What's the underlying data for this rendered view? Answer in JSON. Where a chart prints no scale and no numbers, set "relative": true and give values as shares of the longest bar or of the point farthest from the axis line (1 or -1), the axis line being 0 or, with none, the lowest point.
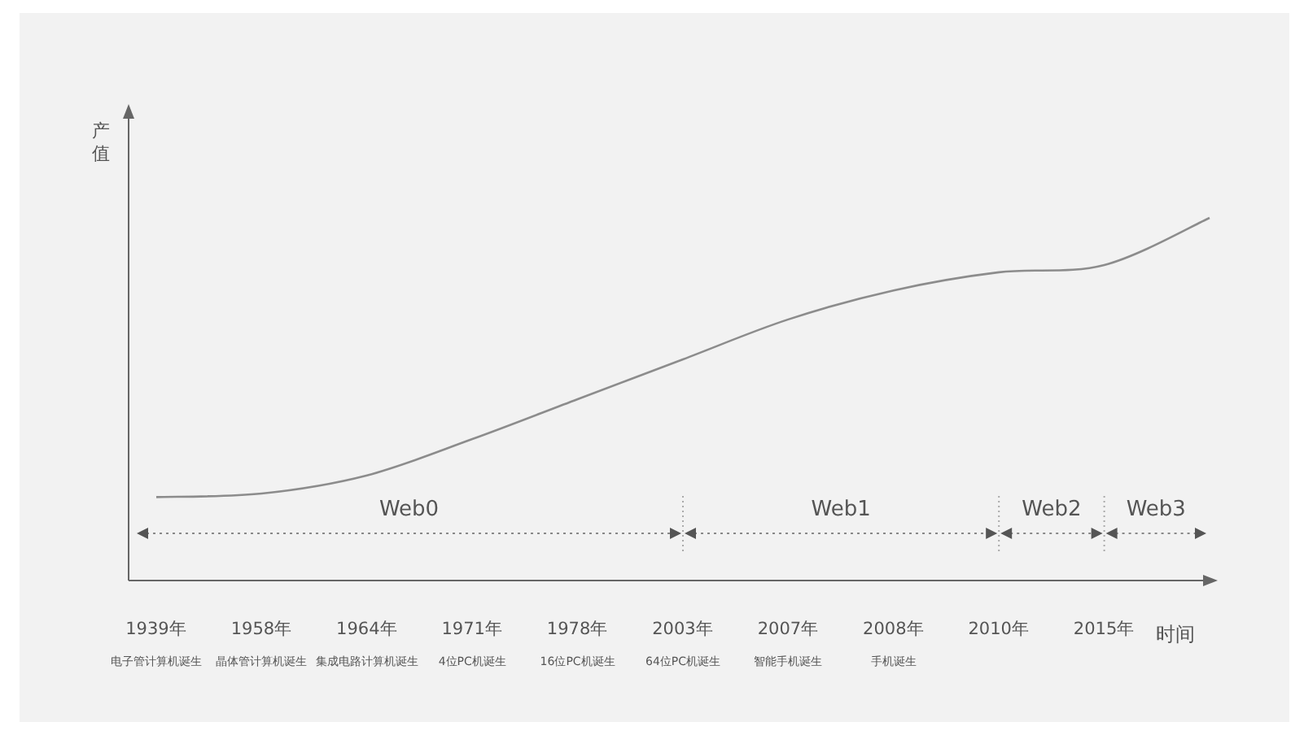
{
  "chart_data": {
    "type": "line",
    "relative": true,
    "xlabel": "时间",
    "ylabel": "产值",
    "color": "#8c8c8c",
    "categories": [
      "1939年",
      "1958年",
      "1964年",
      "1971年",
      "1978年",
      "2003年",
      "2007年",
      "2008年",
      "2010年",
      "2015年",
      null
    ],
    "values": [
      0.23,
      0.24,
      0.29,
      0.39,
      0.5,
      0.61,
      0.72,
      0.8,
      0.85,
      0.87,
      1
    ],
    "annotations": [
      "Web0",
      "Web1",
      "Web2",
      "Web3",
      "电子管计算机诞生",
      "晶体管计算机诞生",
      "集成电路计算机诞生",
      "4位PC机诞生",
      "16位PC机诞生",
      "64位PC机诞生",
      "智能手机诞生",
      "手机诞生"
    ]
  }
}
